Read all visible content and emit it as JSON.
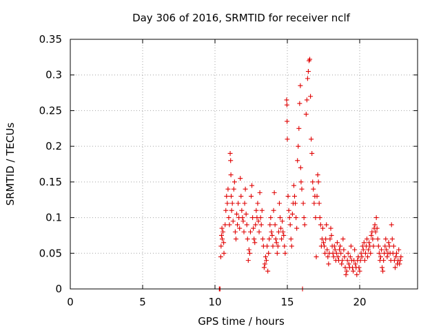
{
  "chart_data": {
    "type": "scatter",
    "title": "Day 306 of 2016, SRMTID for receiver nclf",
    "xlabel": "GPS time / hours",
    "ylabel": "SRMTID / TECUs",
    "xlim": [
      0,
      24
    ],
    "ylim": [
      0,
      0.35
    ],
    "xticks": [
      0,
      5,
      10,
      15,
      20
    ],
    "xtick_labels": [
      "0",
      "5",
      "10",
      "15",
      "20"
    ],
    "yticks": [
      0,
      0.05,
      0.1,
      0.15,
      0.2,
      0.25,
      0.3,
      0.35
    ],
    "ytick_labels": [
      "0",
      "0.05",
      "0.1",
      "0.15",
      "0.2",
      "0.25",
      "0.3",
      "0.35"
    ],
    "grid": true,
    "marker": "+",
    "marker_color": "#e00000",
    "series": [
      {
        "name": "SRMTID",
        "points": [
          [
            10.3,
            0.0
          ],
          [
            10.32,
            0.0
          ],
          [
            10.35,
            0.0
          ],
          [
            10.4,
            0.045
          ],
          [
            10.42,
            0.06
          ],
          [
            10.45,
            0.075
          ],
          [
            10.48,
            0.085
          ],
          [
            10.5,
            0.07
          ],
          [
            10.55,
            0.08
          ],
          [
            10.6,
            0.065
          ],
          [
            10.62,
            0.05
          ],
          [
            10.7,
            0.09
          ],
          [
            10.75,
            0.11
          ],
          [
            10.8,
            0.13
          ],
          [
            10.85,
            0.12
          ],
          [
            10.9,
            0.14
          ],
          [
            10.95,
            0.1
          ],
          [
            11.0,
            0.09
          ],
          [
            11.05,
            0.19
          ],
          [
            11.08,
            0.18
          ],
          [
            11.1,
            0.16
          ],
          [
            11.12,
            0.13
          ],
          [
            11.15,
            0.11
          ],
          [
            11.2,
            0.12
          ],
          [
            11.25,
            0.095
          ],
          [
            11.3,
            0.14
          ],
          [
            11.35,
            0.15
          ],
          [
            11.4,
            0.08
          ],
          [
            11.45,
            0.07
          ],
          [
            11.5,
            0.105
          ],
          [
            11.55,
            0.09
          ],
          [
            11.6,
            0.12
          ],
          [
            11.65,
            0.1
          ],
          [
            11.7,
            0.085
          ],
          [
            11.75,
            0.155
          ],
          [
            11.8,
            0.13
          ],
          [
            11.85,
            0.11
          ],
          [
            11.9,
            0.1
          ],
          [
            11.95,
            0.095
          ],
          [
            12.0,
            0.08
          ],
          [
            12.05,
            0.12
          ],
          [
            12.1,
            0.14
          ],
          [
            12.15,
            0.105
          ],
          [
            12.2,
            0.09
          ],
          [
            12.25,
            0.07
          ],
          [
            12.3,
            0.04
          ],
          [
            12.35,
            0.055
          ],
          [
            12.4,
            0.05
          ],
          [
            12.45,
            0.08
          ],
          [
            12.5,
            0.13
          ],
          [
            12.55,
            0.145
          ],
          [
            12.6,
            0.1
          ],
          [
            12.65,
            0.085
          ],
          [
            12.7,
            0.07
          ],
          [
            12.75,
            0.065
          ],
          [
            12.8,
            0.09
          ],
          [
            12.85,
            0.11
          ],
          [
            12.9,
            0.1
          ],
          [
            12.95,
            0.12
          ],
          [
            13.0,
            0.095
          ],
          [
            13.05,
            0.08
          ],
          [
            13.1,
            0.135
          ],
          [
            13.15,
            0.1
          ],
          [
            13.2,
            0.09
          ],
          [
            13.25,
            0.11
          ],
          [
            13.3,
            0.07
          ],
          [
            13.35,
            0.06
          ],
          [
            13.4,
            0.03
          ],
          [
            13.45,
            0.035
          ],
          [
            13.5,
            0.045
          ],
          [
            13.55,
            0.04
          ],
          [
            13.6,
            0.06
          ],
          [
            13.65,
            0.025
          ],
          [
            13.7,
            0.05
          ],
          [
            13.75,
            0.07
          ],
          [
            13.8,
            0.09
          ],
          [
            13.85,
            0.1
          ],
          [
            13.9,
            0.08
          ],
          [
            13.95,
            0.075
          ],
          [
            14.0,
            0.06
          ],
          [
            14.05,
            0.11
          ],
          [
            14.1,
            0.135
          ],
          [
            14.15,
            0.09
          ],
          [
            14.2,
            0.07
          ],
          [
            14.25,
            0.065
          ],
          [
            14.3,
            0.05
          ],
          [
            14.35,
            0.06
          ],
          [
            14.4,
            0.08
          ],
          [
            14.45,
            0.12
          ],
          [
            14.5,
            0.1
          ],
          [
            14.55,
            0.085
          ],
          [
            14.6,
            0.07
          ],
          [
            14.65,
            0.095
          ],
          [
            14.7,
            0.08
          ],
          [
            14.75,
            0.075
          ],
          [
            14.8,
            0.06
          ],
          [
            14.85,
            0.05
          ],
          [
            14.95,
            0.265
          ],
          [
            14.97,
            0.258
          ],
          [
            14.98,
            0.235
          ],
          [
            15.0,
            0.21
          ],
          [
            15.05,
            0.13
          ],
          [
            15.1,
            0.11
          ],
          [
            15.15,
            0.1
          ],
          [
            15.2,
            0.09
          ],
          [
            15.25,
            0.07
          ],
          [
            15.3,
            0.06
          ],
          [
            15.35,
            0.105
          ],
          [
            15.4,
            0.12
          ],
          [
            15.45,
            0.145
          ],
          [
            15.5,
            0.13
          ],
          [
            15.55,
            0.12
          ],
          [
            15.6,
            0.1
          ],
          [
            15.65,
            0.085
          ],
          [
            15.7,
            0.18
          ],
          [
            15.75,
            0.2
          ],
          [
            15.8,
            0.225
          ],
          [
            15.85,
            0.26
          ],
          [
            15.9,
            0.285
          ],
          [
            15.92,
            0.17
          ],
          [
            15.95,
            0.15
          ],
          [
            16.0,
            0.14
          ],
          [
            16.05,
            0.0
          ],
          [
            16.1,
            0.12
          ],
          [
            16.15,
            0.1
          ],
          [
            16.2,
            0.09
          ],
          [
            16.3,
            0.245
          ],
          [
            16.35,
            0.265
          ],
          [
            16.4,
            0.295
          ],
          [
            16.45,
            0.305
          ],
          [
            16.5,
            0.32
          ],
          [
            16.55,
            0.322
          ],
          [
            16.6,
            0.27
          ],
          [
            16.65,
            0.21
          ],
          [
            16.7,
            0.19
          ],
          [
            16.75,
            0.15
          ],
          [
            16.8,
            0.14
          ],
          [
            16.85,
            0.12
          ],
          [
            16.9,
            0.13
          ],
          [
            16.95,
            0.1
          ],
          [
            17.0,
            0.045
          ],
          [
            17.05,
            0.13
          ],
          [
            17.1,
            0.16
          ],
          [
            17.15,
            0.15
          ],
          [
            17.2,
            0.12
          ],
          [
            17.25,
            0.1
          ],
          [
            17.3,
            0.09
          ],
          [
            17.35,
            0.06
          ],
          [
            17.4,
            0.07
          ],
          [
            17.45,
            0.085
          ],
          [
            17.5,
            0.065
          ],
          [
            17.55,
            0.06
          ],
          [
            17.6,
            0.05
          ],
          [
            17.65,
            0.07
          ],
          [
            17.7,
            0.09
          ],
          [
            17.75,
            0.055
          ],
          [
            17.8,
            0.045
          ],
          [
            17.85,
            0.035
          ],
          [
            17.9,
            0.05
          ],
          [
            17.95,
            0.07
          ],
          [
            18.0,
            0.085
          ],
          [
            18.05,
            0.075
          ],
          [
            18.1,
            0.06
          ],
          [
            18.15,
            0.05
          ],
          [
            18.2,
            0.045
          ],
          [
            18.25,
            0.06
          ],
          [
            18.3,
            0.055
          ],
          [
            18.35,
            0.04
          ],
          [
            18.4,
            0.05
          ],
          [
            18.45,
            0.065
          ],
          [
            18.5,
            0.045
          ],
          [
            18.55,
            0.04
          ],
          [
            18.6,
            0.055
          ],
          [
            18.65,
            0.06
          ],
          [
            18.7,
            0.05
          ],
          [
            18.75,
            0.035
          ],
          [
            18.8,
            0.04
          ],
          [
            18.85,
            0.07
          ],
          [
            18.9,
            0.055
          ],
          [
            18.95,
            0.045
          ],
          [
            19.0,
            0.03
          ],
          [
            19.05,
            0.02
          ],
          [
            19.1,
            0.025
          ],
          [
            19.15,
            0.04
          ],
          [
            19.2,
            0.05
          ],
          [
            19.25,
            0.035
          ],
          [
            19.3,
            0.03
          ],
          [
            19.35,
            0.045
          ],
          [
            19.4,
            0.06
          ],
          [
            19.45,
            0.04
          ],
          [
            19.5,
            0.03
          ],
          [
            19.55,
            0.025
          ],
          [
            19.6,
            0.04
          ],
          [
            19.65,
            0.055
          ],
          [
            19.7,
            0.035
          ],
          [
            19.75,
            0.03
          ],
          [
            19.8,
            0.02
          ],
          [
            19.85,
            0.04
          ],
          [
            19.9,
            0.045
          ],
          [
            19.95,
            0.03
          ],
          [
            20.0,
            0.025
          ],
          [
            20.05,
            0.04
          ],
          [
            20.1,
            0.05
          ],
          [
            20.15,
            0.045
          ],
          [
            20.2,
            0.06
          ],
          [
            20.25,
            0.055
          ],
          [
            20.3,
            0.065
          ],
          [
            20.35,
            0.04
          ],
          [
            20.4,
            0.05
          ],
          [
            20.45,
            0.06
          ],
          [
            20.5,
            0.07
          ],
          [
            20.55,
            0.045
          ],
          [
            20.6,
            0.055
          ],
          [
            20.65,
            0.065
          ],
          [
            20.7,
            0.06
          ],
          [
            20.75,
            0.05
          ],
          [
            20.8,
            0.075
          ],
          [
            20.85,
            0.08
          ],
          [
            20.9,
            0.07
          ],
          [
            20.95,
            0.06
          ],
          [
            21.0,
            0.085
          ],
          [
            21.05,
            0.09
          ],
          [
            21.1,
            0.08
          ],
          [
            21.15,
            0.1
          ],
          [
            21.2,
            0.085
          ],
          [
            21.25,
            0.07
          ],
          [
            21.3,
            0.06
          ],
          [
            21.35,
            0.05
          ],
          [
            21.4,
            0.04
          ],
          [
            21.45,
            0.045
          ],
          [
            21.5,
            0.055
          ],
          [
            21.55,
            0.03
          ],
          [
            21.6,
            0.025
          ],
          [
            21.65,
            0.04
          ],
          [
            21.7,
            0.05
          ],
          [
            21.75,
            0.06
          ],
          [
            21.8,
            0.07
          ],
          [
            21.85,
            0.055
          ],
          [
            21.9,
            0.045
          ],
          [
            21.95,
            0.05
          ],
          [
            22.0,
            0.065
          ],
          [
            22.05,
            0.06
          ],
          [
            22.1,
            0.05
          ],
          [
            22.15,
            0.04
          ],
          [
            22.2,
            0.09
          ],
          [
            22.25,
            0.07
          ],
          [
            22.3,
            0.05
          ],
          [
            22.35,
            0.06
          ],
          [
            22.4,
            0.04
          ],
          [
            22.45,
            0.03
          ],
          [
            22.5,
            0.045
          ],
          [
            22.55,
            0.05
          ],
          [
            22.6,
            0.035
          ],
          [
            22.65,
            0.04
          ],
          [
            22.7,
            0.055
          ],
          [
            22.75,
            0.035
          ],
          [
            22.8,
            0.04
          ],
          [
            22.85,
            0.045
          ]
        ]
      }
    ]
  }
}
